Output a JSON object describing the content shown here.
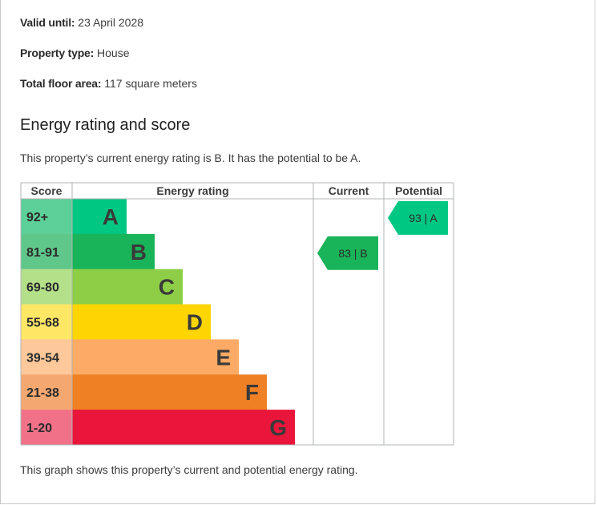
{
  "certificate": {
    "valid_until_label": "Valid until:",
    "valid_until_value": "23 April 2028",
    "property_type_label": "Property type:",
    "property_type_value": "House",
    "floor_area_label": "Total floor area:",
    "floor_area_value": "117 square meters"
  },
  "section": {
    "heading": "Energy rating and score",
    "summary": "This property’s current energy rating is B. It has the potential to be A.",
    "caption": "This graph shows this property’s current and potential energy rating."
  },
  "chart_data": {
    "type": "bar",
    "columns": [
      "Score",
      "Energy rating",
      "Current",
      "Potential"
    ],
    "bands": [
      {
        "score_range": "92+",
        "letter": "A",
        "bar_color": "#00c781",
        "score_color": "#5dcf98"
      },
      {
        "score_range": "81-91",
        "letter": "B",
        "bar_color": "#19b459",
        "score_color": "#5fc78a"
      },
      {
        "score_range": "69-80",
        "letter": "C",
        "bar_color": "#8dce46",
        "score_color": "#b4e08a"
      },
      {
        "score_range": "55-68",
        "letter": "D",
        "bar_color": "#ffd500",
        "score_color": "#ffe766"
      },
      {
        "score_range": "39-54",
        "letter": "E",
        "bar_color": "#fcaa65",
        "score_color": "#fdc89a"
      },
      {
        "score_range": "21-38",
        "letter": "F",
        "bar_color": "#ef8023",
        "score_color": "#f4a870"
      },
      {
        "score_range": "1-20",
        "letter": "G",
        "bar_color": "#e9153b",
        "score_color": "#f17288"
      }
    ],
    "current": {
      "score": 83,
      "rating": "B",
      "label": "83 | B",
      "color": "#19b459"
    },
    "potential": {
      "score": 93,
      "rating": "A",
      "label": "93 | A",
      "color": "#00c781"
    }
  }
}
